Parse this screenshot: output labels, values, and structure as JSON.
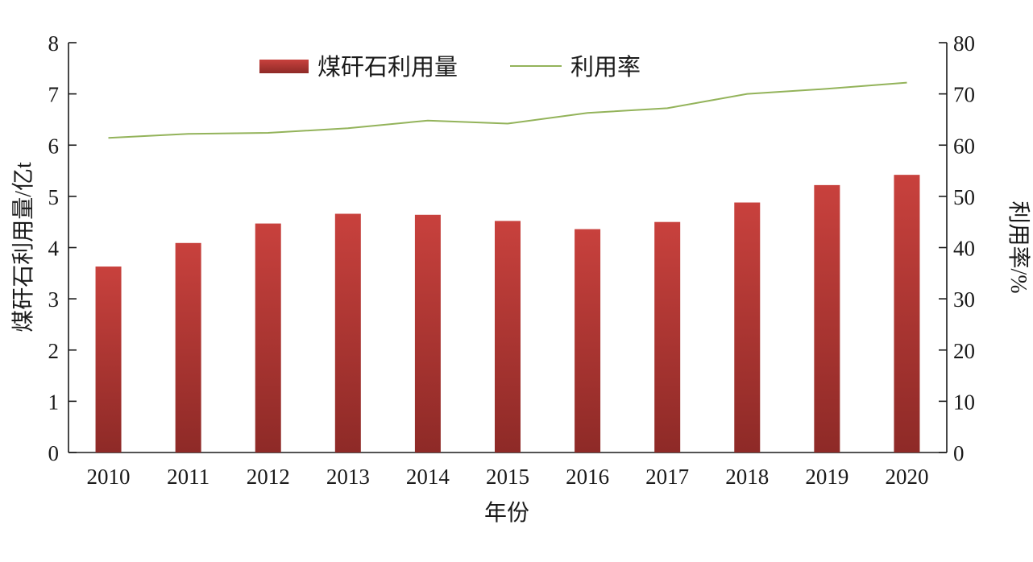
{
  "chart_data": {
    "type": "bar",
    "categories": [
      "2010",
      "2011",
      "2012",
      "2013",
      "2014",
      "2015",
      "2016",
      "2017",
      "2018",
      "2019",
      "2020"
    ],
    "series": [
      {
        "name": "煤矸石利用量",
        "type": "bar",
        "axis": "left",
        "values": [
          3.63,
          4.09,
          4.47,
          4.66,
          4.64,
          4.52,
          4.36,
          4.5,
          4.88,
          5.22,
          5.42
        ],
        "color": "#c0403c"
      },
      {
        "name": "利用率",
        "type": "line",
        "axis": "right",
        "values": [
          61.4,
          62.2,
          62.4,
          63.3,
          64.8,
          64.2,
          66.3,
          67.2,
          70.0,
          71.0,
          72.2
        ],
        "color": "#93b35a"
      }
    ],
    "xlabel": "年份",
    "ylabel_left": "煤矸石利用量/亿t",
    "ylabel_right": "利用率/%",
    "ylim_left": [
      0,
      8
    ],
    "yticks_left": [
      "0",
      "1",
      "2",
      "3",
      "4",
      "5",
      "6",
      "7",
      "8"
    ],
    "ylim_right": [
      0,
      80
    ],
    "yticks_right": [
      "0",
      "10",
      "20",
      "30",
      "40",
      "50",
      "60",
      "70",
      "80"
    ],
    "grid": false,
    "legend_position": "top"
  }
}
